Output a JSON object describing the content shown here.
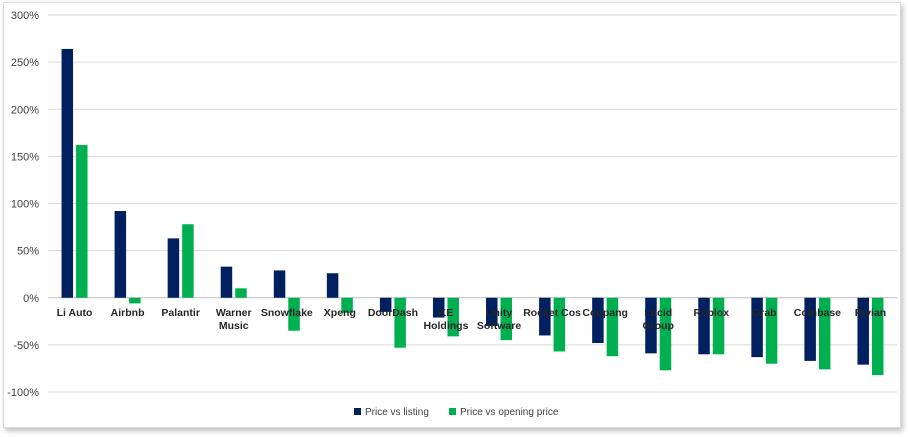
{
  "chart_data": {
    "type": "bar",
    "title": "",
    "xlabel": "",
    "ylabel": "",
    "ylim": [
      -100,
      300
    ],
    "yticks": [
      "-100%",
      "-50%",
      "0%",
      "50%",
      "100%",
      "150%",
      "200%",
      "250%",
      "300%"
    ],
    "grid": true,
    "legend_position": "bottom",
    "categories": [
      [
        "Li Auto"
      ],
      [
        "Airbnb"
      ],
      [
        "Palantir"
      ],
      [
        "Warner",
        "Music"
      ],
      [
        "Snowflake"
      ],
      [
        "Xpeng"
      ],
      [
        "DoorDash"
      ],
      [
        "KE",
        "Holdings"
      ],
      [
        "Unity",
        "Software"
      ],
      [
        "Rocket Cos"
      ],
      [
        "Coupang"
      ],
      [
        "Lucid",
        "Group"
      ],
      [
        "Roblox"
      ],
      [
        "Grab"
      ],
      [
        "Coinbase"
      ],
      [
        "Rivian"
      ]
    ],
    "series": [
      {
        "name": "Price vs listing",
        "color": "#002060",
        "values": [
          264,
          92,
          63,
          33,
          29,
          26,
          -15,
          -21,
          -30,
          -40,
          -48,
          -59,
          -60,
          -63,
          -67,
          -71
        ]
      },
      {
        "name": "Price vs opening price",
        "color": "#00b050",
        "values": [
          162,
          -6,
          78,
          10,
          -35,
          -16,
          -53,
          -41,
          -45,
          -57,
          -62,
          -77,
          -60,
          -70,
          -76,
          -82
        ]
      }
    ]
  }
}
